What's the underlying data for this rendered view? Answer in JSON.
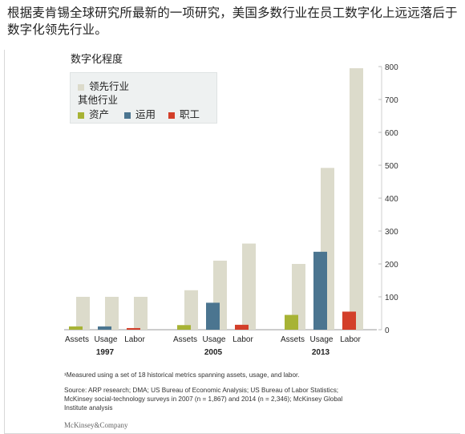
{
  "headline": "根据麦肯锡全球研究所最新的一项研究，美国多数行业在员工数字化上远远落后于数字化领先行业。",
  "chart_title": "数字化程度",
  "legend": {
    "leader": "领先行业",
    "others_heading": "其他行业",
    "assets": "资产",
    "usage": "运用",
    "labor": "职工"
  },
  "colors": {
    "leader": "#dcdbcb",
    "assets": "#a7b335",
    "usage": "#4b7590",
    "labor": "#d33f2a"
  },
  "chart_data": {
    "type": "bar",
    "title": "数字化程度",
    "ylim": [
      0,
      800
    ],
    "yticks": [
      0,
      100,
      200,
      300,
      400,
      500,
      600,
      700,
      800
    ],
    "y_axis_side": "right",
    "groups": [
      "1997",
      "2005",
      "2013"
    ],
    "categories": [
      "Assets",
      "Usage",
      "Labor"
    ],
    "series": [
      {
        "name": "领先行业",
        "values": [
          [
            100,
            100,
            100
          ],
          [
            120,
            210,
            262
          ],
          [
            200,
            492,
            795
          ]
        ]
      },
      {
        "name": "资产",
        "values": [
          10,
          14,
          45
        ]
      },
      {
        "name": "运用",
        "values": [
          10,
          82,
          237
        ]
      },
      {
        "name": "职工",
        "values": [
          5,
          15,
          55
        ]
      }
    ],
    "legend_position": "top-left"
  },
  "footnotes": {
    "note": "¹Measured using a set of 18 historical metrics spanning assets, usage, and labor.",
    "source_1": "Source: ARP research; DMA; US Bureau of Economic Analysis; US Bureau of Labor Statistics;",
    "source_2": "McKinsey social-technology surveys in 2007 (n = 1,867) and 2014 (n = 2,346); McKinsey Global",
    "source_3": "Institute analysis"
  },
  "brand": "McKinsey&Company"
}
